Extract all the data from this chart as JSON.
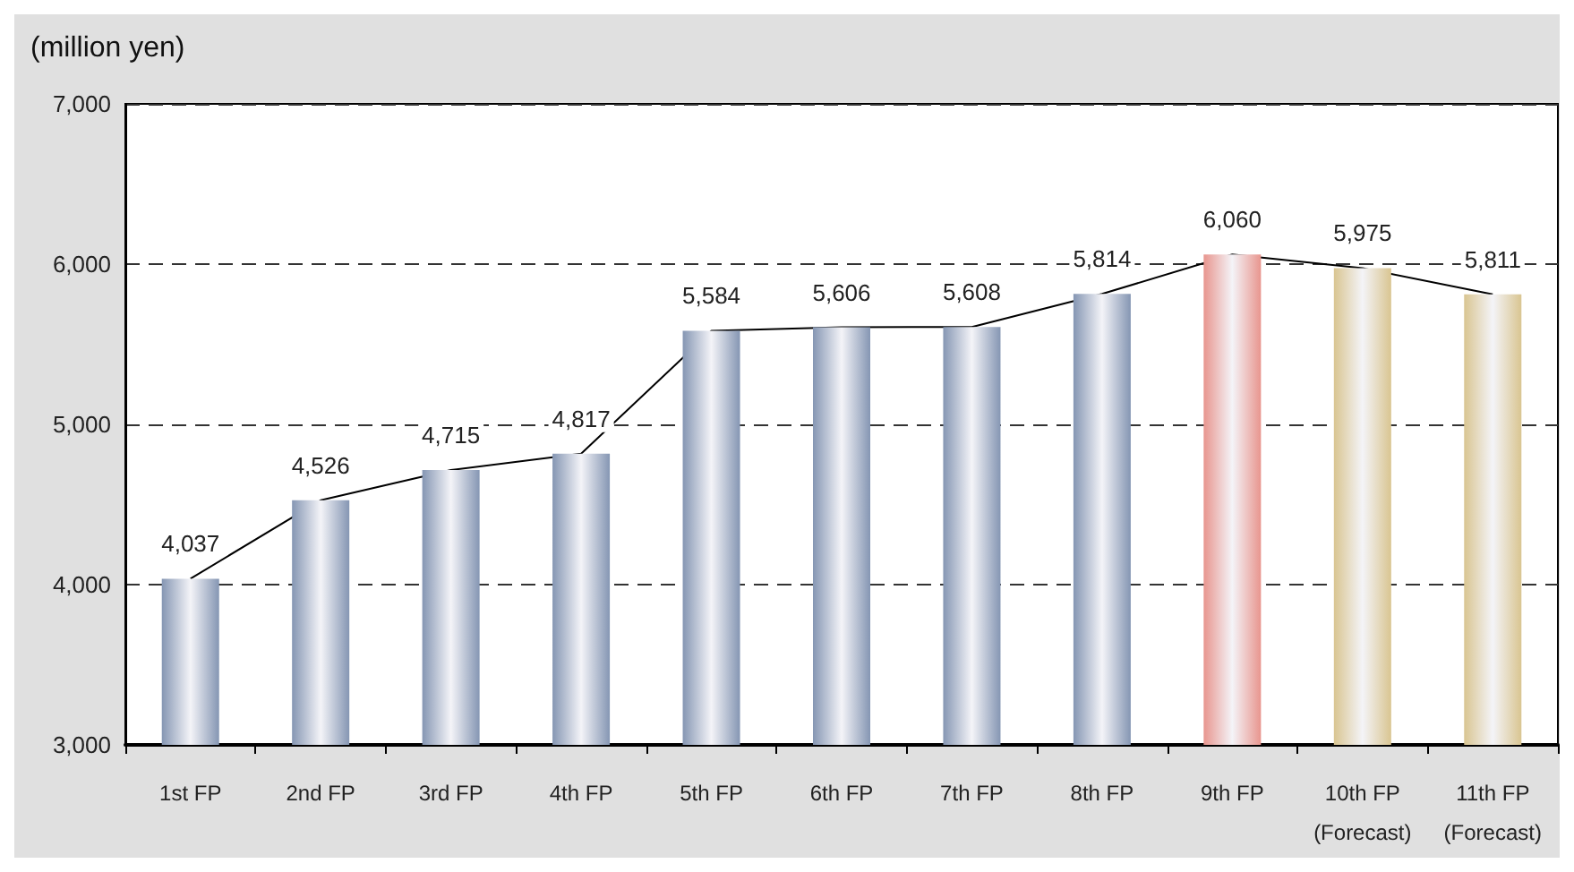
{
  "chart_data": {
    "type": "bar",
    "ylabel": "(million yen)",
    "categories": [
      "1st FP",
      "2nd FP",
      "3rd FP",
      "4th FP",
      "5th FP",
      "6th FP",
      "7th FP",
      "8th FP",
      "9th FP",
      "10th FP\n(Forecast)",
      "11th FP\n(Forecast)"
    ],
    "series": [
      {
        "values": [
          4037,
          4526,
          4715,
          4817,
          5584,
          5606,
          5608,
          5814,
          6060,
          5975,
          5811
        ],
        "value_labels": [
          "4,037",
          "4,526",
          "4,715",
          "4,817",
          "5,584",
          "5,606",
          "5,608",
          "5,814",
          "6,060",
          "5,975",
          "5,811"
        ],
        "colors": [
          "#8596b3",
          "#8596b3",
          "#8596b3",
          "#8596b3",
          "#8596b3",
          "#8596b3",
          "#8596b3",
          "#8596b3",
          "#e8958e",
          "#d9c591",
          "#d9c591"
        ]
      },
      {
        "type": "line",
        "color": "#000000",
        "marker": "none",
        "values": [
          4037,
          4526,
          4715,
          4817,
          5584,
          5606,
          5608,
          5814,
          6060,
          5975,
          5811
        ]
      }
    ],
    "ylim": [
      3000,
      7000
    ],
    "yticks": [
      {
        "value": 3000,
        "label": "3,000"
      },
      {
        "value": 4000,
        "label": "4,000"
      },
      {
        "value": 5000,
        "label": "5,000"
      },
      {
        "value": 6000,
        "label": "6,000"
      },
      {
        "value": 7000,
        "label": "7,000"
      }
    ],
    "grid": "y"
  }
}
